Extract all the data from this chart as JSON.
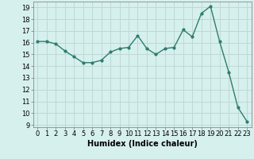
{
  "x": [
    0,
    1,
    2,
    3,
    4,
    5,
    6,
    7,
    8,
    9,
    10,
    11,
    12,
    13,
    14,
    15,
    16,
    17,
    18,
    19,
    20,
    21,
    22,
    23
  ],
  "y": [
    16.1,
    16.1,
    15.9,
    15.3,
    14.8,
    14.3,
    14.3,
    14.5,
    15.2,
    15.5,
    15.6,
    16.6,
    15.5,
    15.0,
    15.5,
    15.6,
    17.1,
    16.5,
    18.5,
    19.1,
    16.1,
    13.5,
    10.5,
    9.3
  ],
  "line_color": "#2d7d6e",
  "marker": "o",
  "markersize": 2.0,
  "linewidth": 1.0,
  "xlabel": "Humidex (Indice chaleur)",
  "xlabel_fontsize": 7,
  "bg_color": "#d6f0ee",
  "grid_color": "#c0d8d5",
  "tick_fontsize": 6,
  "ylim": [
    8.8,
    19.5
  ],
  "yticks": [
    9,
    10,
    11,
    12,
    13,
    14,
    15,
    16,
    17,
    18,
    19
  ],
  "xlim": [
    -0.5,
    23.5
  ],
  "xticks": [
    0,
    1,
    2,
    3,
    4,
    5,
    6,
    7,
    8,
    9,
    10,
    11,
    12,
    13,
    14,
    15,
    16,
    17,
    18,
    19,
    20,
    21,
    22,
    23
  ]
}
